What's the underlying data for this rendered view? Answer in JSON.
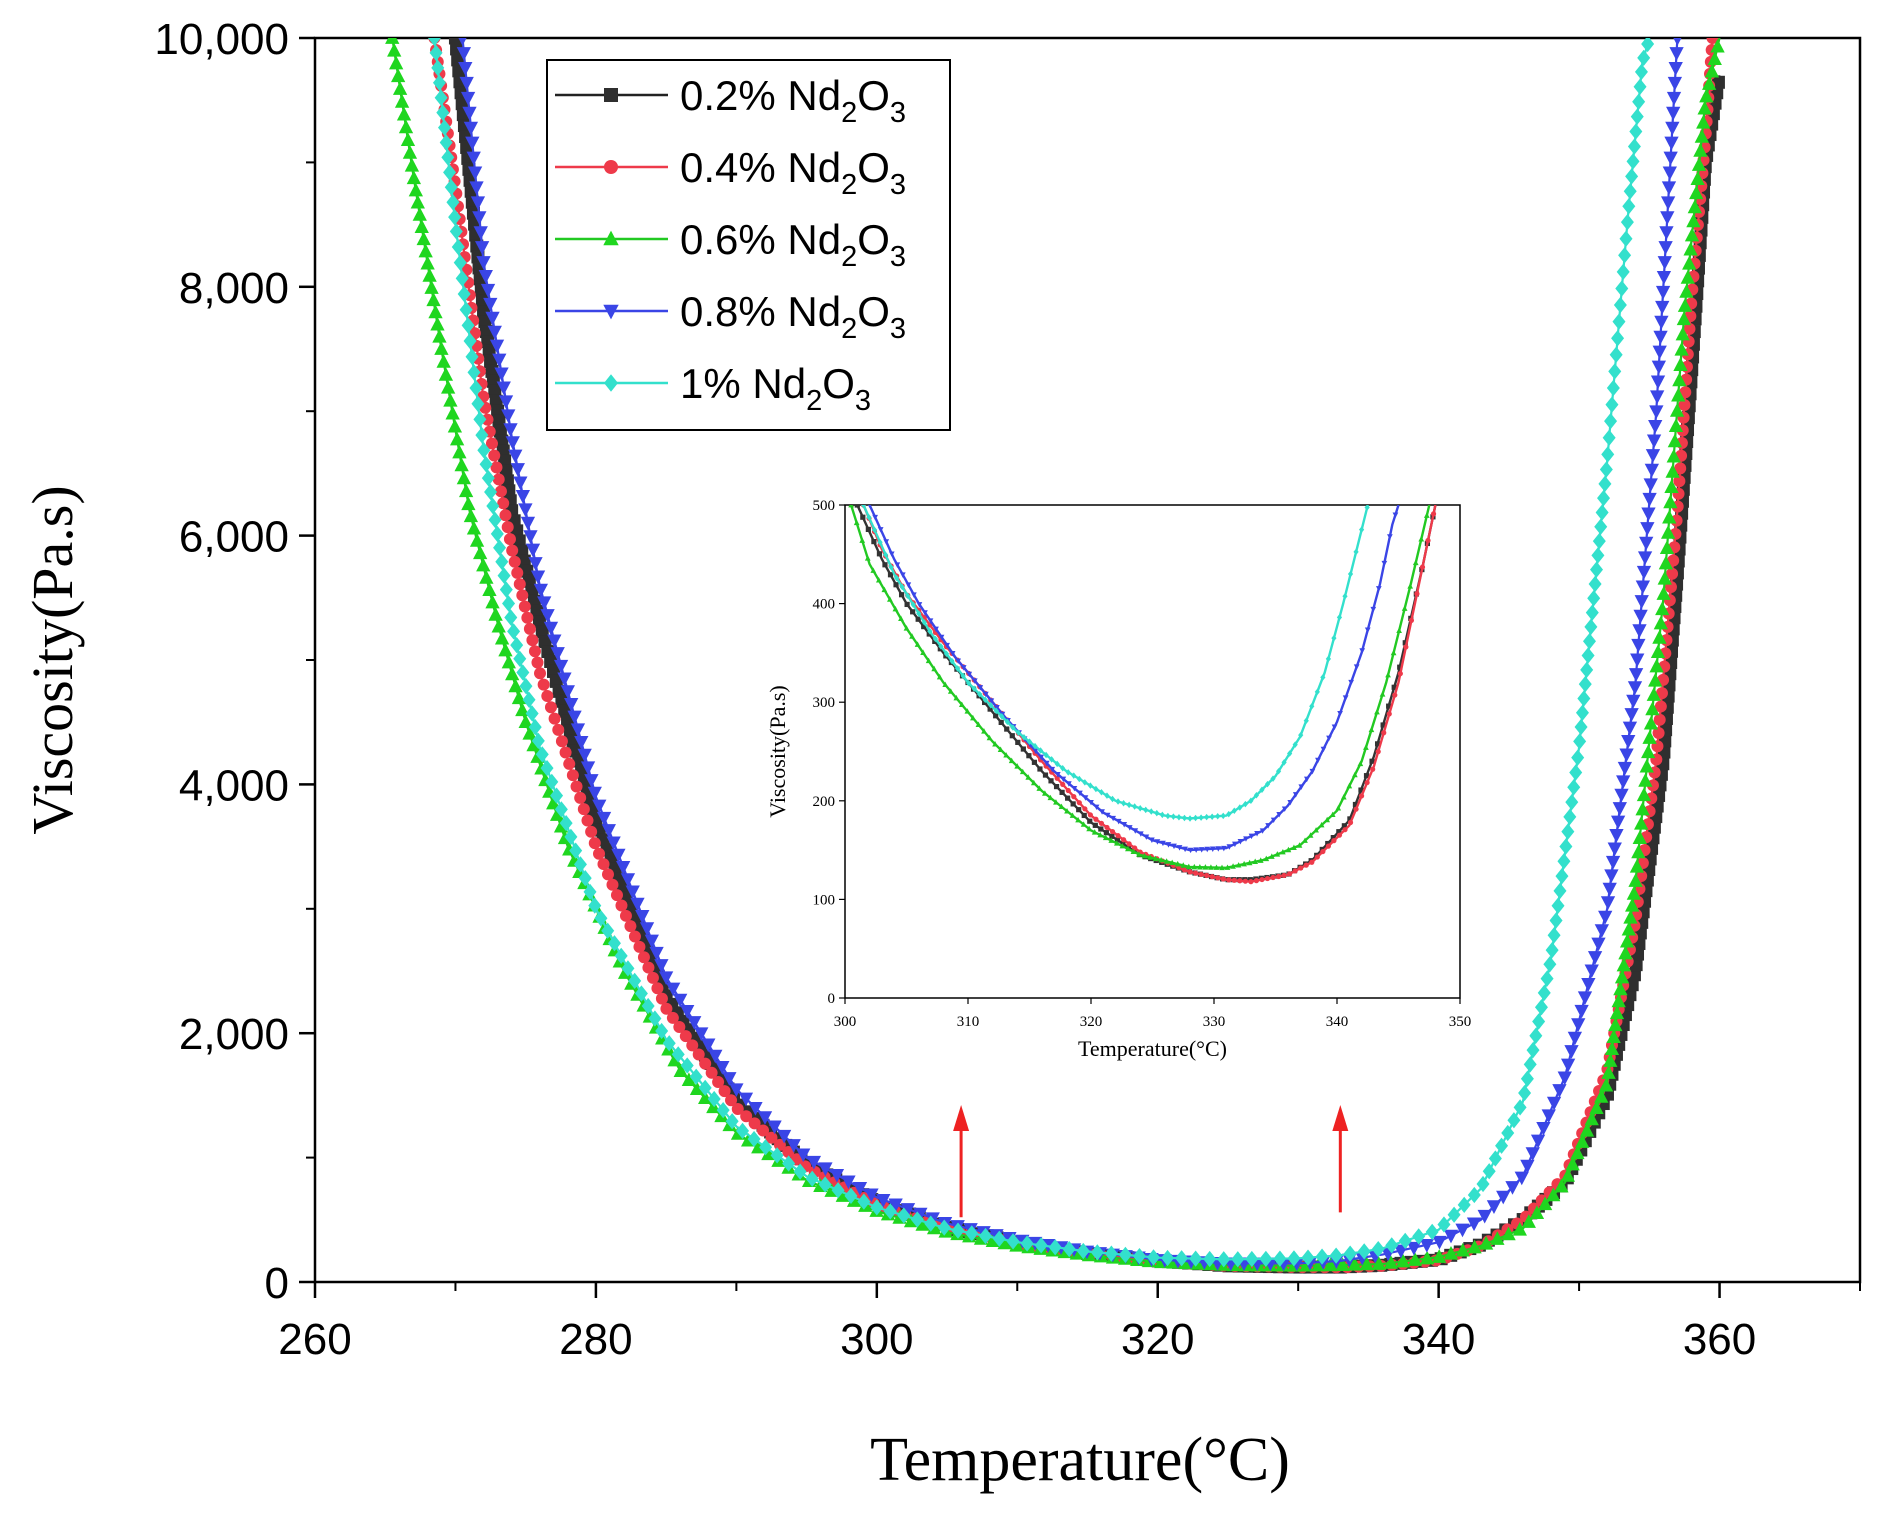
{
  "chart_data": {
    "type": "line",
    "title": "",
    "xlabel": "Temperature(°C)",
    "ylabel": "Viscosity(Pa.s)",
    "xlim": [
      260,
      370
    ],
    "ylim": [
      0,
      10000
    ],
    "xticks": [
      260,
      280,
      300,
      320,
      340,
      360
    ],
    "xtick_labels": [
      "260",
      "280",
      "300",
      "320",
      "340",
      "360"
    ],
    "yticks": [
      0,
      2000,
      4000,
      6000,
      8000,
      10000
    ],
    "ytick_labels": [
      "0",
      "2,000",
      "4,000",
      "6,000",
      "8,000",
      "10,000"
    ],
    "legend": {
      "position": "top-left",
      "entries": [
        {
          "prefix": "0.2% Nd",
          "sub1": "2",
          "mid": "O",
          "sub2": "3"
        },
        {
          "prefix": "0.4% Nd",
          "sub1": "2",
          "mid": "O",
          "sub2": "3"
        },
        {
          "prefix": "0.6% Nd",
          "sub1": "2",
          "mid": "O",
          "sub2": "3"
        },
        {
          "prefix": "0.8% Nd",
          "sub1": "2",
          "mid": "O",
          "sub2": "3"
        },
        {
          "prefix": "1% Nd",
          "sub1": "2",
          "mid": "O",
          "sub2": "3"
        }
      ]
    },
    "series": [
      {
        "name": "0.2% Nd2O3",
        "color": "#2f2f2f",
        "line_color": "#222222",
        "marker": "square",
        "x": [
          270,
          272,
          274,
          276,
          280,
          285,
          290,
          295,
          300,
          305,
          310,
          315,
          320,
          325,
          330,
          333,
          336,
          340,
          343,
          346,
          349,
          352,
          354,
          356,
          357,
          358,
          359,
          360
        ],
        "y": [
          10000,
          7800,
          6200,
          5300,
          3700,
          2300,
          1450,
          950,
          640,
          440,
          320,
          230,
          170,
          130,
          120,
          120,
          135,
          180,
          300,
          500,
          800,
          1500,
          2500,
          4200,
          5700,
          7300,
          9000,
          9700
        ]
      },
      {
        "name": "0.4% Nd2O3",
        "color": "#ee3a4a",
        "line_color": "#ee3a4a",
        "marker": "circle",
        "x": [
          268.5,
          270,
          272,
          274,
          276,
          280,
          285,
          290,
          295,
          300,
          305,
          310,
          315,
          320,
          325,
          330,
          333,
          336,
          340,
          343,
          346,
          349,
          352,
          354,
          355.5,
          357,
          358,
          359,
          359.5
        ],
        "y": [
          10000,
          8800,
          7100,
          5900,
          4900,
          3500,
          2200,
          1400,
          920,
          620,
          430,
          310,
          225,
          165,
          130,
          120,
          118,
          130,
          175,
          290,
          500,
          850,
          1700,
          2900,
          4200,
          6200,
          7900,
          9200,
          10000
        ]
      },
      {
        "name": "0.6% Nd2O3",
        "color": "#1fd61f",
        "line_color": "#22c922",
        "marker": "triangle-up",
        "x": [
          265.5,
          267,
          269,
          271,
          273,
          275,
          278,
          282,
          286,
          290,
          295,
          300,
          305,
          310,
          315,
          320,
          325,
          330,
          333,
          336,
          340,
          343,
          346,
          349,
          352,
          354,
          356,
          357.5,
          359,
          360
        ],
        "y": [
          10000,
          8900,
          7500,
          6200,
          5300,
          4500,
          3500,
          2500,
          1700,
          1200,
          820,
          570,
          400,
          290,
          215,
          160,
          135,
          130,
          135,
          145,
          200,
          290,
          430,
          800,
          1600,
          3200,
          5500,
          7800,
          9500,
          10000
        ]
      },
      {
        "name": "0.8% Nd2O3",
        "color": "#3a45e6",
        "line_color": "#3a45e6",
        "marker": "triangle-down",
        "x": [
          270.5,
          272,
          274,
          276,
          280,
          285,
          290,
          295,
          300,
          305,
          310,
          315,
          320,
          325,
          330,
          333,
          336,
          340,
          343,
          346,
          349,
          352,
          354,
          355.5,
          356.5,
          357
        ],
        "y": [
          10000,
          8200,
          6800,
          5600,
          3900,
          2450,
          1550,
          1000,
          680,
          470,
          340,
          245,
          180,
          150,
          150,
          170,
          220,
          320,
          500,
          850,
          1650,
          3000,
          4800,
          7000,
          9000,
          10000
        ]
      },
      {
        "name": "1% Nd2O3",
        "color": "#33e0cc",
        "line_color": "#33e0cc",
        "marker": "diamond",
        "x": [
          268.5,
          270,
          272,
          274,
          276,
          280,
          285,
          290,
          295,
          300,
          305,
          310,
          315,
          320,
          325,
          330,
          333,
          336,
          340,
          343,
          346,
          348,
          350,
          352,
          353.5,
          354.5,
          355
        ],
        "y": [
          10000,
          8500,
          6700,
          5300,
          4300,
          3000,
          1950,
          1250,
          850,
          600,
          430,
          320,
          245,
          195,
          182,
          190,
          215,
          270,
          420,
          750,
          1450,
          2600,
          4300,
          6600,
          8600,
          9800,
          10000
        ]
      }
    ],
    "annotations": [
      {
        "type": "arrow",
        "color": "#ee2222",
        "x": 306,
        "y_from": 520,
        "y_to": 1420
      },
      {
        "type": "arrow",
        "color": "#ee2222",
        "x": 333,
        "y_from": 560,
        "y_to": 1420
      }
    ],
    "inset": {
      "xlabel": "Temperature(°C)",
      "ylabel": "Viscosity(Pa.s)",
      "xlim": [
        300,
        350
      ],
      "ylim": [
        0,
        500
      ],
      "xticks": [
        300,
        310,
        320,
        330,
        340,
        350
      ],
      "xtick_labels": [
        "300",
        "310",
        "320",
        "330",
        "340",
        "350"
      ],
      "yticks": [
        0,
        100,
        200,
        300,
        400,
        500
      ],
      "ytick_labels": [
        "0",
        "100",
        "200",
        "300",
        "400",
        "500"
      ],
      "series": [
        {
          "name": "0.2% Nd2O3",
          "color": "#333333",
          "x": [
            301,
            303,
            305,
            308,
            312,
            316,
            320,
            324,
            328,
            331,
            333,
            336,
            338,
            341,
            343,
            345,
            347,
            348
          ],
          "y": [
            500,
            445,
            400,
            350,
            290,
            230,
            178,
            145,
            128,
            120,
            120,
            125,
            140,
            180,
            245,
            330,
            440,
            500
          ]
        },
        {
          "name": "0.4% Nd2O3",
          "color": "#ee3a4a",
          "x": [
            301.5,
            303,
            305,
            308,
            312,
            316,
            320,
            324,
            328,
            331,
            333,
            336,
            338,
            341,
            343,
            345,
            347,
            348
          ],
          "y": [
            500,
            455,
            410,
            360,
            300,
            240,
            185,
            148,
            128,
            120,
            118,
            125,
            138,
            175,
            235,
            320,
            440,
            500
          ]
        },
        {
          "name": "0.6% Nd2O3",
          "color": "#22c922",
          "x": [
            300.5,
            302,
            305,
            308,
            312,
            316,
            320,
            324,
            328,
            331,
            334,
            337,
            340,
            342,
            344,
            346,
            347.5
          ],
          "y": [
            500,
            440,
            375,
            320,
            260,
            210,
            170,
            145,
            133,
            132,
            140,
            155,
            190,
            240,
            320,
            420,
            500
          ]
        },
        {
          "name": "0.8% Nd2O3",
          "color": "#3a45e6",
          "x": [
            302,
            304,
            306,
            309,
            313,
            317,
            321,
            325,
            328,
            331,
            334,
            336,
            338,
            340,
            342,
            343.5,
            344.5,
            345
          ],
          "y": [
            500,
            445,
            400,
            345,
            285,
            230,
            188,
            160,
            150,
            152,
            170,
            195,
            230,
            280,
            350,
            420,
            480,
            500
          ]
        },
        {
          "name": "1% Nd2O3",
          "color": "#33e0cc",
          "x": [
            301.5,
            304,
            307,
            310,
            314,
            318,
            322,
            326,
            328,
            331,
            333,
            335,
            337,
            339,
            340.5,
            341.5,
            342.5
          ],
          "y": [
            500,
            430,
            370,
            320,
            270,
            230,
            200,
            185,
            182,
            185,
            200,
            225,
            265,
            330,
            400,
            450,
            500
          ]
        }
      ]
    }
  }
}
